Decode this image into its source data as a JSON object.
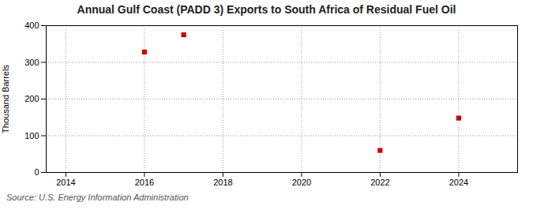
{
  "chart_data": {
    "type": "scatter",
    "title": "Annual Gulf Coast (PADD 3) Exports to South Africa of Residual Fuel Oil",
    "ylabel": "Thousand Barrels",
    "source": "Source: U.S. Energy Information Administration",
    "x": [
      2016,
      2017,
      2022,
      2024
    ],
    "values": [
      328,
      375,
      60,
      148
    ],
    "color": "#cc0000",
    "marker": "square",
    "xlim": [
      2013.5,
      2025.5
    ],
    "xticks": [
      2014,
      2016,
      2018,
      2020,
      2022,
      2024
    ],
    "ylim": [
      0,
      400
    ],
    "yticks": [
      0,
      100,
      200,
      300,
      400
    ],
    "grid": true
  }
}
